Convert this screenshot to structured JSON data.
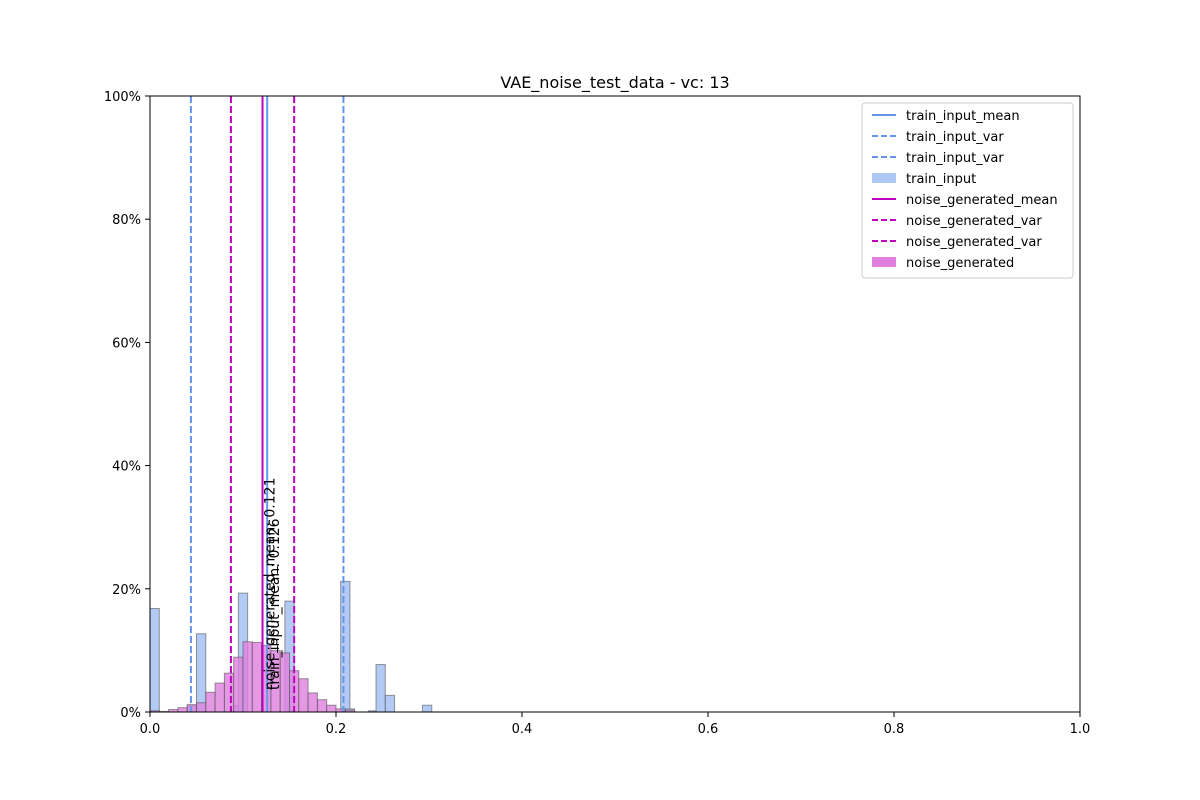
{
  "chart_data": {
    "type": "histogram",
    "title": "VAE_noise_test_data - vc: 13",
    "xlabel": "",
    "ylabel": "",
    "xlim": [
      0,
      1
    ],
    "ylim": [
      0,
      1
    ],
    "x_ticks": [
      "0.0",
      "0.2",
      "0.4",
      "0.6",
      "0.8",
      "1.0"
    ],
    "y_ticks": [
      "0%",
      "20%",
      "40%",
      "60%",
      "80%",
      "100%"
    ],
    "grid": false,
    "legend_position": "upper right",
    "series": [
      {
        "name": "train_input",
        "color": "#aec7f3",
        "edge_color": "#555555",
        "bin_width": 0.01,
        "bins": [
          {
            "x": 0.0,
            "y": 0.168
          },
          {
            "x": 0.04,
            "y": 0.01
          },
          {
            "x": 0.05,
            "y": 0.127
          },
          {
            "x": 0.09,
            "y": 0.01
          },
          {
            "x": 0.095,
            "y": 0.193
          },
          {
            "x": 0.145,
            "y": 0.18
          },
          {
            "x": 0.205,
            "y": 0.212
          },
          {
            "x": 0.21,
            "y": 0.005
          },
          {
            "x": 0.235,
            "y": 0.002
          },
          {
            "x": 0.243,
            "y": 0.077
          },
          {
            "x": 0.253,
            "y": 0.027
          },
          {
            "x": 0.293,
            "y": 0.011
          }
        ]
      },
      {
        "name": "noise_generated",
        "color": "#df80df",
        "edge_color": "#555555",
        "bin_width": 0.01,
        "bins": [
          {
            "x": 0.0,
            "y": 0.002
          },
          {
            "x": 0.01,
            "y": 0.001
          },
          {
            "x": 0.02,
            "y": 0.004
          },
          {
            "x": 0.03,
            "y": 0.007
          },
          {
            "x": 0.04,
            "y": 0.012
          },
          {
            "x": 0.05,
            "y": 0.015
          },
          {
            "x": 0.06,
            "y": 0.032
          },
          {
            "x": 0.07,
            "y": 0.047
          },
          {
            "x": 0.08,
            "y": 0.063
          },
          {
            "x": 0.09,
            "y": 0.089
          },
          {
            "x": 0.1,
            "y": 0.114
          },
          {
            "x": 0.11,
            "y": 0.113
          },
          {
            "x": 0.12,
            "y": 0.108
          },
          {
            "x": 0.13,
            "y": 0.1
          },
          {
            "x": 0.14,
            "y": 0.096
          },
          {
            "x": 0.15,
            "y": 0.067
          },
          {
            "x": 0.16,
            "y": 0.054
          },
          {
            "x": 0.17,
            "y": 0.031
          },
          {
            "x": 0.18,
            "y": 0.02
          },
          {
            "x": 0.19,
            "y": 0.011
          },
          {
            "x": 0.2,
            "y": 0.005
          },
          {
            "x": 0.21,
            "y": 0.003
          }
        ]
      }
    ],
    "vlines": [
      {
        "name": "train_input_mean",
        "x": 0.126,
        "color": "#6495ed",
        "style": "solid"
      },
      {
        "name": "train_input_var",
        "x": 0.044,
        "color": "#6495ed",
        "style": "dashed"
      },
      {
        "name": "train_input_var",
        "x": 0.208,
        "color": "#6495ed",
        "style": "dashed"
      },
      {
        "name": "noise_generated_mean",
        "x": 0.121,
        "color": "#bf00bf",
        "style": "solid"
      },
      {
        "name": "noise_generated_var",
        "x": 0.087,
        "color": "#bf00bf",
        "style": "dashed"
      },
      {
        "name": "noise_generated_var",
        "x": 0.155,
        "color": "#bf00bf",
        "style": "dashed"
      }
    ],
    "annotations": [
      {
        "text": "noise_generated_mean: 0.121",
        "x": 0.121
      },
      {
        "text": "train_input_mean: 0.126",
        "x": 0.126
      }
    ],
    "legend": [
      {
        "label": "train_input_mean",
        "kind": "line",
        "color": "#6495ed",
        "style": "solid"
      },
      {
        "label": "train_input_var",
        "kind": "line",
        "color": "#6495ed",
        "style": "dashed"
      },
      {
        "label": "train_input_var",
        "kind": "line",
        "color": "#6495ed",
        "style": "dashed"
      },
      {
        "label": "train_input",
        "kind": "patch",
        "color": "#aec7f3"
      },
      {
        "label": "noise_generated_mean",
        "kind": "line",
        "color": "#bf00bf",
        "style": "solid"
      },
      {
        "label": "noise_generated_var",
        "kind": "line",
        "color": "#bf00bf",
        "style": "dashed"
      },
      {
        "label": "noise_generated_var",
        "kind": "line",
        "color": "#bf00bf",
        "style": "dashed"
      },
      {
        "label": "noise_generated",
        "kind": "patch",
        "color": "#df80df"
      }
    ]
  }
}
